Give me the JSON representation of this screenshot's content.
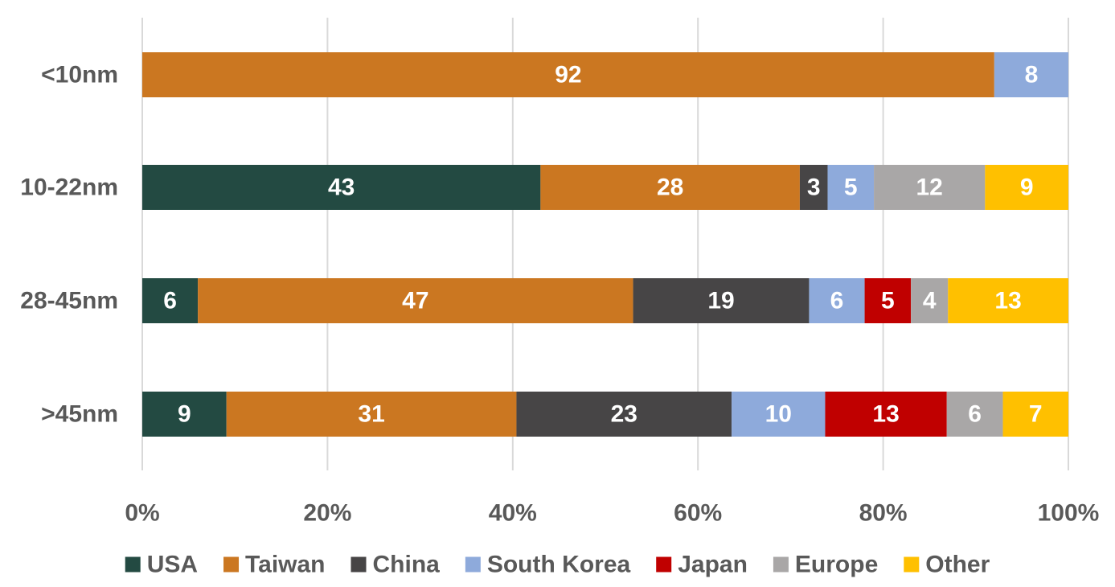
{
  "chart_data": {
    "type": "bar",
    "orientation": "horizontal",
    "stacked": "percent",
    "categories": [
      "<10nm",
      "10-22nm",
      "28-45nm",
      ">45nm"
    ],
    "series": [
      {
        "name": "USA",
        "color": "#234a42",
        "values": [
          0,
          43,
          6,
          9
        ]
      },
      {
        "name": "Taiwan",
        "color": "#cb7721",
        "values": [
          92,
          28,
          47,
          31
        ]
      },
      {
        "name": "China",
        "color": "#474546",
        "values": [
          0,
          3,
          19,
          23
        ]
      },
      {
        "name": "South Korea",
        "color": "#8eaadb",
        "values": [
          8,
          5,
          6,
          10
        ]
      },
      {
        "name": "Japan",
        "color": "#c00000",
        "values": [
          0,
          0,
          5,
          13
        ]
      },
      {
        "name": "Europe",
        "color": "#a9a7a7",
        "values": [
          0,
          12,
          4,
          6
        ]
      },
      {
        "name": "Other",
        "color": "#ffc000",
        "values": [
          0,
          9,
          13,
          7
        ]
      }
    ],
    "xlim": [
      0,
      100
    ],
    "x_ticks": [
      "0%",
      "20%",
      "40%",
      "60%",
      "80%",
      "100%"
    ],
    "grid": true,
    "legend_position": "bottom",
    "title": "",
    "xlabel": "",
    "ylabel": ""
  }
}
